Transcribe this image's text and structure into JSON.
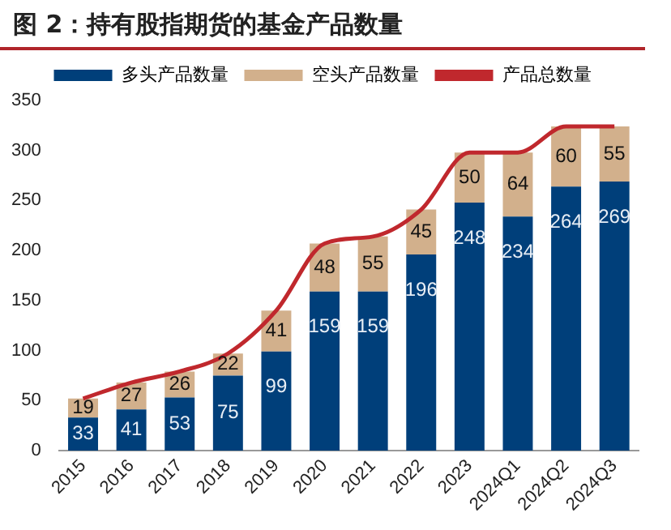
{
  "chart_data": {
    "type": "bar",
    "title": "图 2：持有股指期货的基金产品数量",
    "stacked": true,
    "categories": [
      "2015",
      "2016",
      "2017",
      "2018",
      "2019",
      "2020",
      "2021",
      "2022",
      "2023",
      "2024Q1",
      "2024Q2",
      "2024Q3"
    ],
    "series": [
      {
        "name": "多头产品数量",
        "color": "#003f7a",
        "values": [
          33,
          41,
          53,
          75,
          99,
          159,
          159,
          196,
          248,
          234,
          264,
          269
        ],
        "value_labels": [
          "33",
          "41",
          "53",
          "75",
          "99",
          "159",
          "159",
          "196",
          "248",
          "234",
          "264",
          "269"
        ]
      },
      {
        "name": "空头产品数量",
        "color": "#d2b08c",
        "values": [
          19,
          27,
          26,
          22,
          41,
          48,
          55,
          45,
          50,
          64,
          60,
          55
        ],
        "value_labels": [
          "19",
          "27",
          "26",
          "22",
          "41",
          "48",
          "55",
          "45",
          "50",
          "64",
          "60",
          "55"
        ]
      },
      {
        "name": "产品总数量",
        "type": "line",
        "color": "#c0282d",
        "values": [
          52,
          68,
          79,
          97,
          140,
          207,
          214,
          241,
          298,
          298,
          324,
          324
        ]
      }
    ],
    "ylim": [
      0,
      350
    ],
    "yticks": [
      0,
      50,
      100,
      150,
      200,
      250,
      300,
      350
    ],
    "grid": false,
    "legend": "top",
    "marker": "none"
  }
}
